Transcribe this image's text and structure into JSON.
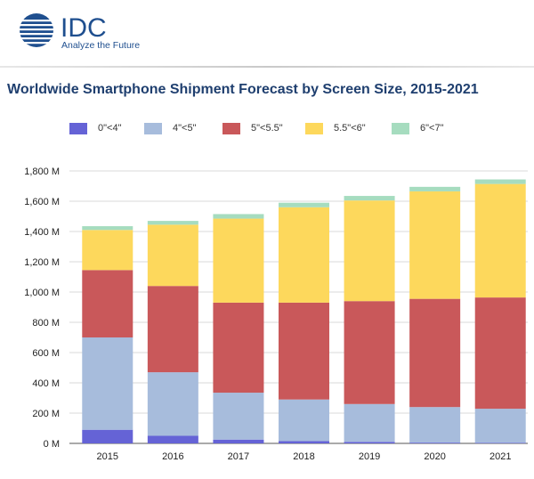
{
  "brand": {
    "logo_text": "IDC",
    "tagline": "Analyze the Future",
    "color": "#1f4f8f"
  },
  "chart_data": {
    "type": "bar",
    "stacked": true,
    "title": "Worldwide Smartphone Shipment Forecast by Screen Size, 2015-2021",
    "xlabel": "",
    "ylabel": "",
    "categories": [
      "2015",
      "2016",
      "2017",
      "2018",
      "2019",
      "2020",
      "2021"
    ],
    "ylim": [
      0,
      1800
    ],
    "yticks": [
      "0 M",
      "200 M",
      "400 M",
      "600 M",
      "800 M",
      "1,000 M",
      "1,200 M",
      "1,400 M",
      "1,600 M",
      "1,800 M"
    ],
    "legend_position": "top",
    "grid": true,
    "series": [
      {
        "name": "0\"<4\"",
        "color": "#6563d6",
        "values": [
          90,
          50,
          25,
          15,
          10,
          5,
          4
        ]
      },
      {
        "name": "4\"<5\"",
        "color": "#a7bcdc",
        "values": [
          610,
          420,
          310,
          275,
          250,
          235,
          225
        ]
      },
      {
        "name": "5\"<5.5\"",
        "color": "#c9585a",
        "values": [
          445,
          570,
          595,
          640,
          680,
          715,
          735
        ]
      },
      {
        "name": "5.5\"<6\"",
        "color": "#fdd85c",
        "values": [
          265,
          405,
          555,
          630,
          665,
          710,
          750
        ]
      },
      {
        "name": "6\"<7\"",
        "color": "#a6dcbf",
        "values": [
          25,
          25,
          30,
          30,
          30,
          30,
          30
        ]
      }
    ]
  }
}
